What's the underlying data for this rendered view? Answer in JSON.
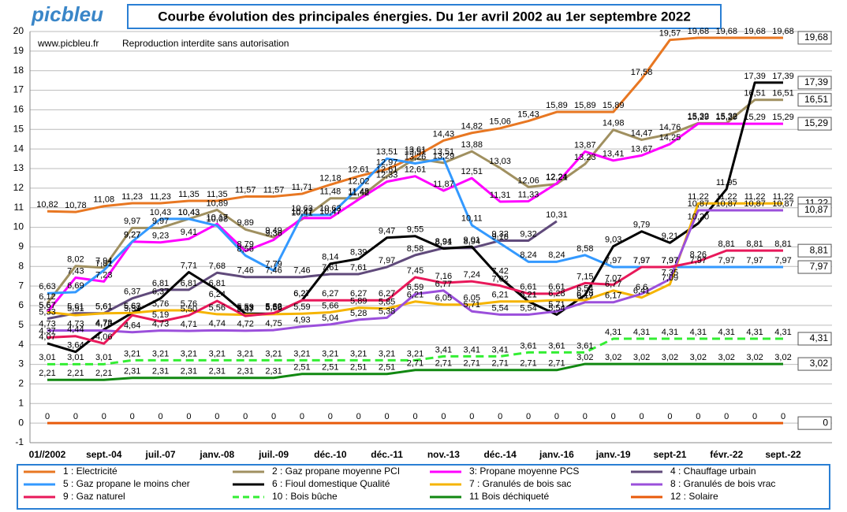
{
  "chart_data": {
    "type": "line",
    "title": "Courbe évolution des principales énergies. Du 1er avril 2002 au 1er septembre 2022",
    "logo": "picbleu",
    "site": "www.picbleu.fr",
    "notice": "Reproduction interdite sans autorisation",
    "categories": [
      "01//2002",
      null,
      "sept.-04",
      null,
      "juil.-07",
      null,
      "janv.-08",
      null,
      "juil.-09",
      null,
      "déc.-10",
      null,
      "déc.-11",
      null,
      "nov.-13",
      null,
      "déc.-14",
      null,
      "janv.-16",
      null,
      "janv.-19",
      null,
      "sept-21",
      null,
      "févr.-22",
      null,
      "sept.-22"
    ],
    "ylim": [
      -1,
      20
    ],
    "yticks": [
      -1,
      0,
      1,
      2,
      3,
      4,
      5,
      6,
      7,
      8,
      9,
      10,
      11,
      12,
      13,
      14,
      15,
      16,
      17,
      18,
      19,
      20
    ],
    "grid": true,
    "series": [
      {
        "name": "1 : Electricité",
        "color": "#e87722",
        "values": [
          10.82,
          10.78,
          11.08,
          11.23,
          11.23,
          11.35,
          11.35,
          11.57,
          11.57,
          11.71,
          12.18,
          12.61,
          12.97,
          13.61,
          14.43,
          14.82,
          15.06,
          15.43,
          15.89,
          15.89,
          15.89,
          17.58,
          19.57,
          19.68,
          19.68,
          19.68,
          19.68
        ],
        "value_labels": [
          "10,82",
          "10,78",
          "11,08",
          "11,23",
          "11,23",
          "11,35",
          "11,35",
          "11,57",
          "11,57",
          "11,71",
          "12,18",
          "12,61",
          "12,97",
          "13,61",
          "14,43",
          "14,82",
          "15,06",
          "15,43",
          "15,89",
          "15,89",
          "15,89",
          "17,58",
          "19,57",
          "19,68",
          "19,68",
          "19,68",
          "19,68"
        ]
      },
      {
        "name": "2 : Gaz propane moyenne PCI",
        "color": "#a09060",
        "values": [
          6.12,
          8.02,
          7.94,
          9.97,
          9.97,
          10.43,
          10.89,
          9.89,
          9.49,
          10.41,
          11.48,
          11.48,
          12.61,
          13.51,
          13.29,
          13.88,
          13.03,
          12.06,
          12.21,
          13.23,
          14.98,
          14.47,
          14.76,
          15.32,
          15.32,
          16.51,
          16.51
        ],
        "value_labels": [
          "6,12",
          "8,02",
          "7,94",
          "9,97",
          "9,97",
          "10,43",
          "10,89",
          "9,89",
          "9,49",
          "10,41",
          "11,48",
          "11,48",
          "12,61",
          "13,51",
          "13,29",
          "13,88",
          "13,03",
          "12,06",
          "12,21",
          "13,23",
          "14,98",
          "14,47",
          "14,76",
          "15,32",
          "15,32",
          "16,51",
          "16,51"
        ]
      },
      {
        "name": "3: Propane moyenne PCS",
        "color": "#ff00ff",
        "values": [
          5.67,
          7.43,
          7.23,
          9.27,
          9.23,
          9.41,
          10.17,
          8.79,
          9.36,
          10.47,
          10.47,
          11.42,
          12.33,
          12.61,
          11.87,
          12.51,
          11.31,
          11.33,
          12.24,
          13.87,
          13.41,
          13.67,
          14.25,
          15.29,
          15.29,
          15.29,
          15.29
        ],
        "value_labels": [
          "5,67",
          "7,43",
          "7,23",
          "9,27",
          "9,23",
          "9,41",
          "10,17",
          "8,79",
          "9,36",
          "10,47",
          "10,47",
          "11,42",
          "12,33",
          "12,61",
          "11,87",
          "12,51",
          "11,31",
          "11,33",
          "12,24",
          "13,87",
          "13,41",
          "13,67",
          "14,25",
          "15,29",
          "15,29",
          "15,29",
          "15,29"
        ]
      },
      {
        "name": "4 : Chauffage urbain",
        "color": "#604a7b",
        "values": [
          5.33,
          5.61,
          5.61,
          6.37,
          6.81,
          6.81,
          7.68,
          7.46,
          7.46,
          7.46,
          7.61,
          7.61,
          7.97,
          8.58,
          8.94,
          8.94,
          9.32,
          9.32,
          10.31,
          null,
          null,
          null,
          null,
          null,
          null,
          null,
          null
        ],
        "value_labels": [
          "5,33",
          "5,61",
          "5,61",
          "6,37",
          "6,81",
          "6,81",
          "7,68",
          "7,46",
          "7,46",
          "7,46",
          "7,61",
          "7,61",
          "7,97",
          "8,58",
          "8,94",
          "8,94",
          "9,32",
          "9,32",
          "10,31",
          null,
          null,
          null,
          null,
          null,
          null,
          null,
          null
        ]
      },
      {
        "name": "5 : Gaz propane le moins cher",
        "color": "#3399ff",
        "values": [
          6.63,
          6.69,
          7.81,
          9.27,
          10.43,
          10.43,
          10.08,
          8.56,
          7.79,
          10.63,
          10.63,
          12.02,
          13.51,
          13.26,
          13.51,
          10.11,
          9.18,
          8.24,
          8.24,
          8.58,
          7.97,
          7.97,
          7.97,
          7.97,
          7.97,
          7.97,
          7.97
        ],
        "value_labels": [
          "6,63",
          "6,69",
          "7,81",
          "9,27",
          "10,43",
          "10,43",
          "10,08",
          "8,56",
          "7,79",
          "10,63",
          "10,63",
          "12,02",
          "13,51",
          "13,26",
          "13,51",
          "10,11",
          "9,18",
          "8,24",
          "8,24",
          "8,58",
          "7,97",
          "7,97",
          "7,97",
          "7,97",
          "7,97",
          "7,97",
          "7,97"
        ]
      },
      {
        "name": "6 : Fioul domestique Qualité",
        "color": "#000000",
        "values": [
          4.07,
          3.64,
          4.78,
          5.63,
          6.37,
          7.71,
          6.81,
          5.59,
          5.59,
          6.27,
          8.14,
          8.39,
          9.47,
          9.55,
          8.91,
          9.01,
          7.42,
          6.21,
          5.54,
          6.54,
          9.03,
          9.79,
          9.21,
          10.2,
          11.95,
          17.39,
          17.39
        ],
        "value_labels": [
          "4,07",
          "3,64",
          "4,78",
          "5,63",
          "6,37",
          "7,71",
          "6,81",
          "5,59",
          "5,59",
          "6,27",
          "8,14",
          "8,39",
          "9,47",
          "9,55",
          "8,91",
          "9,01",
          "7,42",
          "6,21",
          "5,54",
          "6,54",
          "9,03",
          "9,79",
          "9,21",
          "10,20",
          "11,95",
          "17,39",
          "17,39"
        ]
      },
      {
        "name": "7 : Granulés de bois sac",
        "color": "#f5b400",
        "values": [
          5.67,
          5.51,
          5.61,
          5.63,
          5.76,
          5.76,
          5.56,
          5.53,
          5.56,
          5.59,
          5.66,
          5.89,
          5.85,
          6.21,
          6.05,
          6.05,
          6.21,
          6.21,
          6.28,
          6.28,
          6.77,
          6.41,
          7.09,
          11.22,
          11.22,
          11.22,
          11.22
        ],
        "value_labels": [
          "5,67",
          "5,51",
          "5,61",
          "5,63",
          "5,76",
          "5,76",
          "5,56",
          "5,53",
          "5,56",
          "5,59",
          "5,66",
          "5,89",
          "5,85",
          "6,21",
          "6,05",
          "6,05",
          "6,21",
          "6,21",
          "6,28",
          "6,28",
          "6,77",
          "6,41",
          "7,09",
          "11,22",
          "11,22",
          "11,22",
          "11,22"
        ]
      },
      {
        "name": "8 : Granulés de bois vrac",
        "color": "#9b4fdb",
        "values": [
          4.73,
          4.73,
          4.73,
          4.64,
          4.73,
          4.71,
          4.74,
          4.72,
          4.75,
          4.93,
          5.04,
          5.28,
          5.38,
          6.59,
          6.77,
          5.71,
          5.54,
          5.54,
          5.71,
          6.17,
          6.17,
          6.6,
          7.35,
          10.87,
          10.87,
          10.87,
          10.87
        ],
        "value_labels": [
          "4,73",
          "4,73",
          "4,73",
          "4,64",
          "4,73",
          "4,71",
          "4,74",
          "4,72",
          "4,75",
          "4,93",
          "5,04",
          "5,28",
          "5,38",
          "6,59",
          "6,77",
          "5,71",
          "5,54",
          "5,54",
          "5,71",
          "6,17",
          "6,17",
          "6,6",
          "7,35",
          "10,87",
          "10,87",
          "10,87",
          "10,87"
        ]
      },
      {
        "name": "9 : Gaz naturel",
        "color": "#e8185a",
        "values": [
          4.37,
          4.44,
          4.06,
          5.51,
          5.19,
          5.5,
          6.24,
          5.47,
          5.62,
          6.27,
          6.27,
          6.27,
          6.27,
          7.45,
          7.16,
          7.24,
          7.02,
          6.61,
          6.61,
          7.15,
          7.07,
          7.97,
          7.97,
          8.26,
          8.81,
          8.81,
          8.81
        ],
        "value_labels": [
          "4,37",
          "4,44",
          "4,06",
          "5,51",
          "5,19",
          "5,50",
          "6,24",
          "5,47",
          "5,62",
          "6,27",
          "6,27",
          "6,27",
          "6,27",
          "7,45",
          "7,16",
          "7,24",
          "7,02",
          "6,61",
          "6,61",
          "7,15",
          "7,07",
          "7,97",
          "7,97",
          "8,26",
          "8,81",
          "8,81",
          "8,81"
        ]
      },
      {
        "name": "10 : Bois bûche",
        "color": "#33ee33",
        "dashed": true,
        "values": [
          3.01,
          3.01,
          3.01,
          3.21,
          3.21,
          3.21,
          3.21,
          3.21,
          3.21,
          3.21,
          3.21,
          3.21,
          3.21,
          3.21,
          3.41,
          3.41,
          3.41,
          3.61,
          3.61,
          3.61,
          4.31,
          4.31,
          4.31,
          4.31,
          4.31,
          4.31,
          4.31
        ],
        "value_labels": [
          "3,01",
          "3,01",
          "3,01",
          "3,21",
          "3,21",
          "3,21",
          "3,21",
          "3,21",
          "3,21",
          "3,21",
          "3,21",
          "3,21",
          "3,21",
          "3,21",
          "3,41",
          "3,41",
          "3,41",
          "3,61",
          "3,61",
          "3,61",
          "4,31",
          "4,31",
          "4,31",
          "4,31",
          "4,31",
          "4,31",
          "4,31"
        ]
      },
      {
        "name": "11 Bois déchiqueté",
        "color": "#118811",
        "values": [
          2.21,
          2.21,
          2.21,
          2.31,
          2.31,
          2.31,
          2.31,
          2.31,
          2.31,
          2.51,
          2.51,
          2.51,
          2.51,
          2.71,
          2.71,
          2.71,
          2.71,
          2.71,
          2.71,
          3.02,
          3.02,
          3.02,
          3.02,
          3.02,
          3.02,
          3.02,
          3.02
        ],
        "value_labels": [
          "2,21",
          "2,21",
          "2,21",
          "2,31",
          "2,31",
          "2,31",
          "2,31",
          "2,31",
          "2,31",
          "2,51",
          "2,51",
          "2,51",
          "2,51",
          "2,71",
          "2,71",
          "2,71",
          "2,71",
          "2,71",
          "2,71",
          "3,02",
          "3,02",
          "3,02",
          "3,02",
          "3,02",
          "3,02",
          "3,02",
          "3,02"
        ]
      },
      {
        "name": "12 : Solaire",
        "color": "#e85a0a",
        "values": [
          0,
          0,
          0,
          0,
          0,
          0,
          0,
          0,
          0,
          0,
          0,
          0,
          0,
          0,
          0,
          0,
          0,
          0,
          0,
          0,
          0,
          0,
          0,
          0,
          0,
          0,
          0
        ]
      }
    ]
  }
}
